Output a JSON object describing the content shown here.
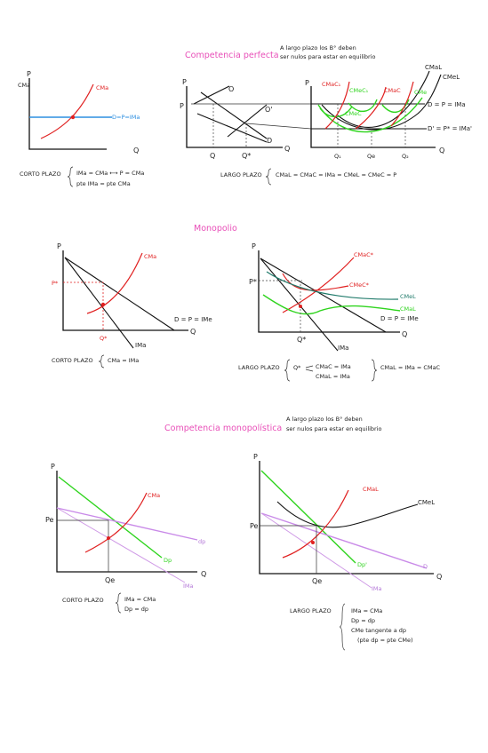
{
  "sections": {
    "perfect": {
      "title": "Competencia perfecta",
      "note_line1": "A largo plazo los B° deben",
      "note_line2": "ser nulos para estar en equilibrio",
      "short": {
        "p": "P",
        "cma_axis": "CMa",
        "q": "Q",
        "cma": "CMa",
        "demand": "D=P=IMa",
        "caption_label": "CORTO PLAZO",
        "caption_line1": "IMa = CMa ⟷ P = CMa",
        "caption_line2": "pte IMa = pte CMa"
      },
      "market": {
        "p": "P",
        "p_mark": "P",
        "q": "Q",
        "q_mark": "Q",
        "q_star": "Q*",
        "o": "O",
        "o_prime": "O'",
        "d": "D"
      },
      "long": {
        "p": "P",
        "q": "Q",
        "cmal": "CMaL",
        "cmel": "CMeL",
        "cmac1": "CMaC₁",
        "cmec1": "CMeC₁",
        "cmec": "CMeC",
        "cmac": "CMaC",
        "cme": "CMe",
        "demand": "D = P = IMa",
        "demand_prime": "D' = P* = IMa'",
        "q1": "Q₁",
        "qe": "Qe",
        "q2": "Q₂",
        "caption_label": "LARGO PLAZO",
        "caption": "CMaL = CMaC = IMa = CMeL = CMeC = P"
      }
    },
    "monopoly": {
      "title": "Monopolio",
      "short": {
        "p": "P",
        "q": "Q",
        "p_star": "P*",
        "q_star": "Q*",
        "cma": "CMa",
        "demand": "D = P = IMe",
        "ima": "IMa",
        "caption_label": "CORTO PLAZO",
        "caption": "CMa = IMa"
      },
      "long": {
        "p": "P",
        "q": "Q",
        "p_star": "P*",
        "q_star": "Q*",
        "cmac": "CMaC*",
        "cmec": "CMeC*",
        "cmel": "CMeL",
        "cmal": "CMaL",
        "demand": "D = P = IMe",
        "ima": "IMa",
        "caption_label": "LARGO PLAZO",
        "caption_q": "Q*",
        "caption_line1": "CMaC = IMa",
        "caption_line2": "CMaL = IMa",
        "caption_right": "CMaL = IMa = CMaC"
      }
    },
    "monopolistic": {
      "title": "Competencia monopolística",
      "note_line1": "A largo plazo los B° deben",
      "note_line2": "ser nulos para estar en equilibrio",
      "short": {
        "p": "P",
        "q": "Q",
        "pe": "Pe",
        "qe": "Qe",
        "cma": "CMa",
        "dp": "dp",
        "Dp": "Dp",
        "ima": "IMa",
        "caption_label": "CORTO PLAZO",
        "caption_line1": "IMa = CMa",
        "caption_line2": "Dp = dp"
      },
      "long": {
        "p": "P",
        "q": "Q",
        "pe": "Pe",
        "qe": "Qe",
        "cmal": "CMaL",
        "cmel": "CMeL",
        "dp_prime": "Dp'",
        "d": "D",
        "ima": "IMa",
        "caption_label": "LARGO PLAZO",
        "caption_line1": "IMa = CMa",
        "caption_line2": "Dp = dp",
        "caption_line3": "CMe tangente a dp",
        "caption_line4": "(pte dp = pte CMe)"
      }
    }
  },
  "colors": {
    "title": "#e84fb8",
    "cost": "#e02020",
    "green": "#2fd41e",
    "teal": "#1f7a6a",
    "purple": "#c98ae8",
    "blue": "#2d8fe0"
  }
}
